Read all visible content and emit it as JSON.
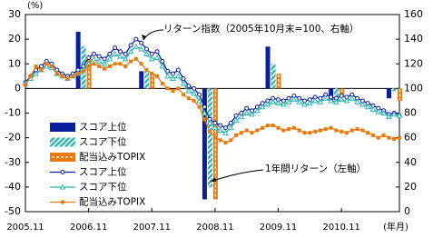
{
  "chart_data": {
    "type": "combo",
    "y_label": "(%)",
    "x_label": "(年月)",
    "annotations": [
      "リターン指数（2005年10月末=100、右軸）",
      "1年間リターン（左軸）"
    ],
    "x": [
      0,
      1,
      2,
      3,
      4,
      5,
      6,
      7,
      8,
      9,
      10,
      11,
      12,
      13,
      14,
      15,
      16,
      17,
      18,
      19,
      20,
      21,
      22,
      23,
      24,
      25,
      26,
      27,
      28,
      29,
      30,
      31,
      32,
      33,
      34,
      35,
      36,
      37,
      38,
      39,
      40,
      41,
      42,
      43,
      44,
      45,
      46,
      47,
      48,
      49,
      50,
      51,
      52,
      53,
      54,
      55,
      56,
      57,
      58,
      59,
      60,
      61,
      62,
      63,
      64,
      65,
      66,
      67,
      68,
      69,
      70,
      71
    ],
    "xlim": [
      0,
      71
    ],
    "xticks": [
      {
        "value": 0,
        "label": "2005.11"
      },
      {
        "value": 12,
        "label": "2006.11"
      },
      {
        "value": 24,
        "label": "2007.11"
      },
      {
        "value": 36,
        "label": "2008.11"
      },
      {
        "value": 48,
        "label": "2009.11"
      },
      {
        "value": 60,
        "label": "2010.11"
      }
    ],
    "ylim": [
      -50,
      30
    ],
    "yticks": [
      -50,
      -40,
      -30,
      -20,
      -10,
      0,
      10,
      20,
      30
    ],
    "y2lim": [
      0,
      160
    ],
    "y2ticks": [
      0,
      20,
      40,
      60,
      80,
      100,
      120,
      140,
      160
    ],
    "series": [
      {
        "name": "スコア上位",
        "kind": "bar",
        "style": "solid",
        "color": "#0a1f9e",
        "x": [
          12,
          24,
          36,
          48,
          60,
          71
        ],
        "values": [
          23,
          7,
          -45,
          17,
          -5,
          -4
        ]
      },
      {
        "name": "スコア下位",
        "kind": "bar",
        "style": "hatch",
        "color": "#2bb5b0",
        "x": [
          12,
          24,
          36,
          48,
          60,
          71
        ],
        "values": [
          17,
          7,
          -40,
          10,
          -5,
          -1
        ]
      },
      {
        "name": "配当込みTOPIX",
        "kind": "bar",
        "style": "dashed",
        "color": "#e87b10",
        "x": [
          12,
          24,
          36,
          48,
          60,
          71
        ],
        "values": [
          13,
          6,
          -45,
          6,
          -3,
          -5
        ]
      },
      {
        "name": "スコア上位",
        "kind": "line",
        "marker": "circle",
        "axis": "y2",
        "color": "#0a1f9e",
        "values": [
          105,
          110,
          115,
          118,
          122,
          120,
          115,
          112,
          110,
          112,
          115,
          118,
          125,
          128,
          126,
          124,
          128,
          133,
          130,
          128,
          135,
          140,
          137,
          132,
          128,
          130,
          122,
          114,
          112,
          115,
          108,
          102,
          100,
          95,
          85,
          75,
          72,
          70,
          68,
          72,
          78,
          80,
          84,
          82,
          85,
          88,
          90,
          92,
          91,
          90,
          92,
          94,
          92,
          90,
          91,
          93,
          92,
          95,
          93,
          92,
          94,
          93,
          95,
          92,
          90,
          88,
          86,
          84,
          82,
          79,
          80,
          78
        ]
      },
      {
        "name": "スコア下位",
        "kind": "line",
        "marker": "triangle",
        "axis": "y2",
        "color": "#2bb5b0",
        "values": [
          104,
          108,
          112,
          115,
          118,
          117,
          112,
          110,
          108,
          110,
          112,
          115,
          120,
          124,
          122,
          120,
          124,
          128,
          126,
          124,
          130,
          134,
          132,
          128,
          124,
          125,
          118,
          110,
          108,
          110,
          104,
          98,
          96,
          90,
          80,
          72,
          68,
          66,
          64,
          68,
          74,
          77,
          80,
          79,
          82,
          85,
          87,
          89,
          88,
          87,
          89,
          91,
          89,
          87,
          88,
          90,
          89,
          92,
          90,
          89,
          91,
          90,
          92,
          89,
          87,
          85,
          83,
          81,
          80,
          77,
          79,
          78
        ]
      },
      {
        "name": "配当込みTOPIX",
        "kind": "line",
        "marker": "square",
        "axis": "y2",
        "color": "#e87b10",
        "values": [
          103,
          110,
          118,
          115,
          120,
          118,
          112,
          110,
          108,
          110,
          112,
          114,
          118,
          120,
          118,
          116,
          118,
          120,
          120,
          118,
          122,
          124,
          120,
          115,
          112,
          110,
          104,
          100,
          98,
          100,
          95,
          92,
          90,
          85,
          75,
          65,
          60,
          58,
          56,
          58,
          62,
          64,
          66,
          64,
          66,
          68,
          70,
          70,
          68,
          66,
          67,
          68,
          66,
          64,
          64,
          65,
          66,
          67,
          68,
          66,
          65,
          64,
          66,
          67,
          66,
          64,
          62,
          60,
          62,
          60,
          59,
          60
        ]
      }
    ]
  }
}
